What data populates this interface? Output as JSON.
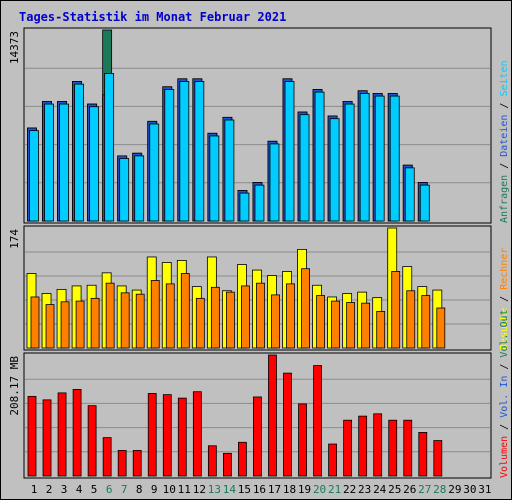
{
  "title": "Tages-Statistik im Monat Februar 2021",
  "colors": {
    "background": "#c0c0c0",
    "title": "#0000cc",
    "anfragen": "#1a7a5a",
    "dateien": "#2255cc",
    "seiten": "#00ccff",
    "besuche": "#ffff00",
    "rechner": "#ff8000",
    "vol_out": "#1a7a5a",
    "vol_in": "#2255cc",
    "volumen": "#ff0000",
    "weekday_day": "#000000",
    "weekend_day": "#1a7a5a"
  },
  "chart_data": [
    {
      "type": "bar",
      "panel": "top",
      "ymax_label": "14373",
      "ymax": 14373,
      "legend": [
        "Anfragen",
        "Dateien",
        "Seiten"
      ],
      "legend_separator": " / ",
      "categories": [
        "1",
        "2",
        "3",
        "4",
        "5",
        "6",
        "7",
        "8",
        "9",
        "10",
        "11",
        "12",
        "13",
        "14",
        "15",
        "16",
        "17",
        "18",
        "19",
        "20",
        "21",
        "22",
        "23",
        "24",
        "25",
        "26",
        "27",
        "28",
        "29",
        "30",
        "31"
      ],
      "series": [
        {
          "name": "Anfragen",
          "values": [
            7000,
            9000,
            9000,
            10500,
            8800,
            14373,
            4900,
            5100,
            7500,
            10100,
            10700,
            10700,
            6600,
            7800,
            2300,
            2900,
            6000,
            10700,
            8200,
            9900,
            7900,
            9000,
            9800,
            9600,
            9600,
            4200,
            2900,
            0,
            0,
            0,
            0
          ]
        },
        {
          "name": "Dateien",
          "values": [
            7000,
            9000,
            9000,
            10500,
            8800,
            9500,
            4900,
            5100,
            7500,
            10100,
            10700,
            10700,
            6600,
            7800,
            2300,
            2900,
            6000,
            10700,
            8200,
            9900,
            7900,
            9000,
            9800,
            9600,
            9600,
            4200,
            2900,
            0,
            0,
            0,
            0
          ]
        },
        {
          "name": "Seiten",
          "values": [
            6800,
            8800,
            8800,
            10300,
            8600,
            11100,
            4700,
            4900,
            7300,
            9900,
            10500,
            10500,
            6400,
            7600,
            2100,
            2700,
            5800,
            10500,
            8000,
            9700,
            7700,
            8800,
            9600,
            9400,
            9400,
            4000,
            2700,
            0,
            0,
            0,
            0
          ]
        }
      ]
    },
    {
      "type": "bar",
      "panel": "middle",
      "ymax_label": "174",
      "ymax": 174,
      "legend": [
        "Besuche",
        "Rechner"
      ],
      "legend_separator": " / ",
      "categories": [
        "1",
        "2",
        "3",
        "4",
        "5",
        "6",
        "7",
        "8",
        "9",
        "10",
        "11",
        "12",
        "13",
        "14",
        "15",
        "16",
        "17",
        "18",
        "19",
        "20",
        "21",
        "22",
        "23",
        "24",
        "25",
        "26",
        "27",
        "28",
        "29",
        "30",
        "31"
      ],
      "series": [
        {
          "name": "Besuche",
          "values": [
            108,
            79,
            85,
            90,
            91,
            109,
            90,
            84,
            132,
            124,
            127,
            89,
            132,
            83,
            121,
            113,
            105,
            111,
            143,
            91,
            74,
            79,
            81,
            73,
            174,
            118,
            89,
            84,
            0,
            0,
            0
          ]
        },
        {
          "name": "Rechner",
          "values": [
            74,
            63,
            67,
            68,
            72,
            94,
            80,
            78,
            98,
            93,
            108,
            72,
            88,
            81,
            90,
            94,
            77,
            93,
            115,
            76,
            68,
            66,
            65,
            53,
            111,
            83,
            76,
            58,
            0,
            0,
            0
          ]
        }
      ]
    },
    {
      "type": "bar",
      "panel": "bottom",
      "ymax_label": "208.17 MB",
      "ymax": 208.17,
      "legend": [
        "Volumen",
        "Vol. In",
        "Vol. Out"
      ],
      "legend_separator": " / ",
      "categories": [
        "1",
        "2",
        "3",
        "4",
        "5",
        "6",
        "7",
        "8",
        "9",
        "10",
        "11",
        "12",
        "13",
        "14",
        "15",
        "16",
        "17",
        "18",
        "19",
        "20",
        "21",
        "22",
        "23",
        "24",
        "25",
        "26",
        "27",
        "28",
        "29",
        "30",
        "31"
      ],
      "series": [
        {
          "name": "Volumen",
          "values": [
            137,
            131,
            143,
            149,
            121,
            66,
            44,
            44,
            142,
            140,
            134,
            145,
            52,
            39,
            58,
            136,
            208.17,
            177,
            124,
            190,
            55,
            96,
            103,
            107,
            96,
            96,
            75,
            61,
            0,
            0,
            0
          ]
        }
      ]
    }
  ],
  "x_labels": [
    {
      "text": "1",
      "weekend": false
    },
    {
      "text": "2",
      "weekend": false
    },
    {
      "text": "3",
      "weekend": false
    },
    {
      "text": "4",
      "weekend": false
    },
    {
      "text": "5",
      "weekend": false
    },
    {
      "text": "6",
      "weekend": true
    },
    {
      "text": "7",
      "weekend": true
    },
    {
      "text": "8",
      "weekend": false
    },
    {
      "text": "9",
      "weekend": false
    },
    {
      "text": "10",
      "weekend": false
    },
    {
      "text": "11",
      "weekend": false
    },
    {
      "text": "12",
      "weekend": false
    },
    {
      "text": "13",
      "weekend": true
    },
    {
      "text": "14",
      "weekend": true
    },
    {
      "text": "15",
      "weekend": false
    },
    {
      "text": "16",
      "weekend": false
    },
    {
      "text": "17",
      "weekend": false
    },
    {
      "text": "18",
      "weekend": false
    },
    {
      "text": "19",
      "weekend": false
    },
    {
      "text": "20",
      "weekend": true
    },
    {
      "text": "21",
      "weekend": true
    },
    {
      "text": "22",
      "weekend": false
    },
    {
      "text": "23",
      "weekend": false
    },
    {
      "text": "24",
      "weekend": false
    },
    {
      "text": "25",
      "weekend": false
    },
    {
      "text": "26",
      "weekend": false
    },
    {
      "text": "27",
      "weekend": true
    },
    {
      "text": "28",
      "weekend": true
    },
    {
      "text": "29",
      "weekend": false
    },
    {
      "text": "30",
      "weekend": false
    },
    {
      "text": "31",
      "weekend": false
    }
  ]
}
